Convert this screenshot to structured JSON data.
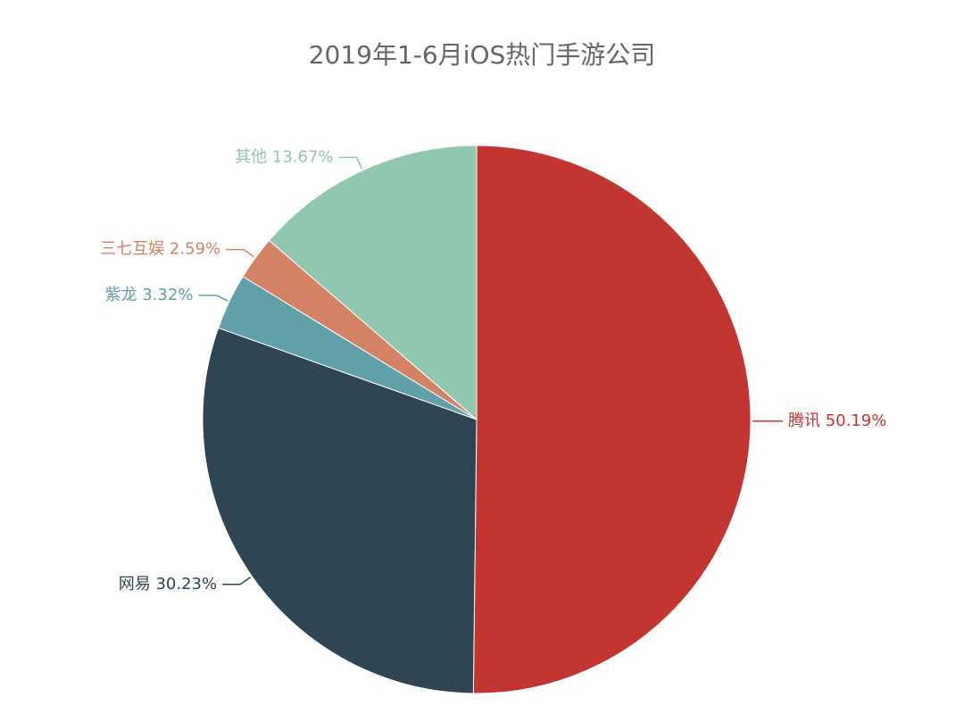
{
  "chart_data": {
    "type": "pie",
    "title": "2019年1-6月iOS热门手游公司",
    "slices": [
      {
        "name": "腾讯",
        "value": 50.19,
        "value_label": "50.19%",
        "color": "#c23531"
      },
      {
        "name": "网易",
        "value": 30.23,
        "value_label": "30.23%",
        "color": "#2f4554"
      },
      {
        "name": "紫龙",
        "value": 3.32,
        "value_label": "3.32%",
        "color": "#61a0a8"
      },
      {
        "name": "三七互娱",
        "value": 2.59,
        "value_label": "2.59%",
        "color": "#d48265"
      },
      {
        "name": "其他",
        "value": 13.67,
        "value_label": "13.67%",
        "color": "#91c7ae"
      }
    ],
    "start_angle": "12-o'clock",
    "direction": "clockwise",
    "legend": "none"
  }
}
